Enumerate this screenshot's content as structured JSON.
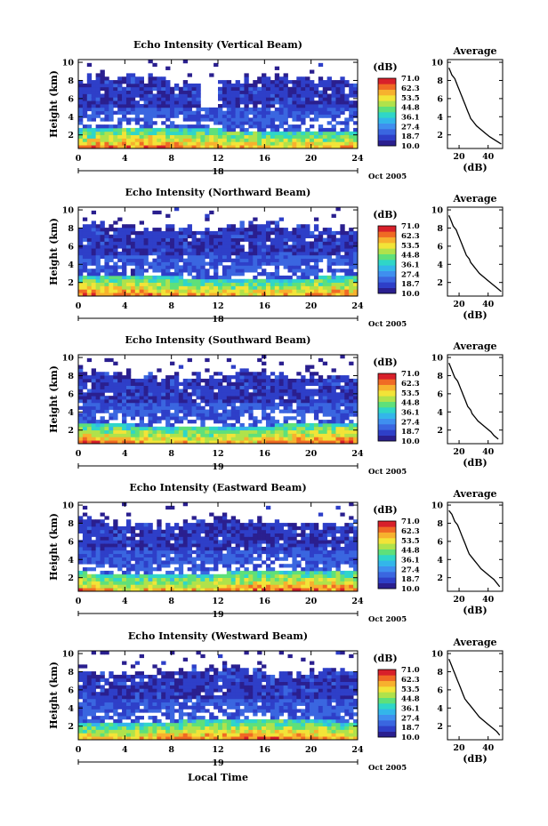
{
  "figure": {
    "xlabel": "Local Time",
    "date_label": "Oct 2005",
    "colorbar_unit": "(dB)",
    "colorbar_ticks": [
      "71.0",
      "62.3",
      "53.5",
      "44.8",
      "36.1",
      "27.4",
      "18.7",
      "10.0"
    ],
    "colormap": [
      "#2a1f8f",
      "#2e3fc8",
      "#3a66e0",
      "#3f8fef",
      "#33b6ea",
      "#2fd6c8",
      "#5ee07a",
      "#b0e24b",
      "#f2e438",
      "#f7b12e",
      "#f06a24",
      "#d8202a"
    ]
  },
  "chart_data": [
    {
      "type": "heatmap",
      "title": "Echo Intensity (Vertical Beam)",
      "ylabel": "Height (km)",
      "xlim": [
        0,
        24
      ],
      "ylim": [
        0.5,
        10.3
      ],
      "x_ticks": [
        0,
        4,
        8,
        12,
        16,
        20,
        24
      ],
      "y_ticks": [
        2,
        4,
        6,
        8,
        10
      ],
      "day_label": "18",
      "clim": [
        10.0,
        71.0
      ],
      "colorbar_ticks": [
        71.0,
        62.3,
        53.5,
        44.8,
        36.1,
        27.4,
        18.7,
        10.0
      ],
      "profile": {
        "title": "Average",
        "xlabel": "(dB)",
        "xlim": [
          12,
          50
        ],
        "x_ticks": [
          20,
          40
        ],
        "ylim": [
          0.5,
          10.3
        ],
        "y_ticks": [
          2,
          4,
          6,
          8,
          10
        ],
        "height": [
          9.4,
          9.0,
          8.6,
          8.2,
          7.8,
          7.4,
          7.0,
          6.6,
          6.2,
          5.8,
          5.4,
          5.0,
          4.6,
          4.2,
          3.8,
          3.4,
          3.0,
          2.6,
          2.2,
          1.8,
          1.4,
          1.0
        ],
        "value": [
          13,
          14,
          15,
          17,
          18,
          19,
          20,
          21,
          22,
          23,
          24,
          25,
          26,
          27,
          28,
          30,
          32,
          35,
          38,
          41,
          45,
          49
        ]
      }
    },
    {
      "type": "heatmap",
      "title": "Echo Intensity (Northward Beam)",
      "ylabel": "Height (km)",
      "xlim": [
        0,
        24
      ],
      "ylim": [
        0.5,
        10.3
      ],
      "x_ticks": [
        0,
        4,
        8,
        12,
        16,
        20,
        24
      ],
      "y_ticks": [
        2,
        4,
        6,
        8,
        10
      ],
      "day_label": "18",
      "clim": [
        10.0,
        71.0
      ],
      "colorbar_ticks": [
        71.0,
        62.3,
        53.5,
        44.8,
        36.1,
        27.4,
        18.7,
        10.0
      ],
      "profile": {
        "title": "Average",
        "xlabel": "(dB)",
        "xlim": [
          12,
          50
        ],
        "x_ticks": [
          20,
          40
        ],
        "ylim": [
          0.5,
          10.3
        ],
        "y_ticks": [
          2,
          4,
          6,
          8,
          10
        ],
        "height": [
          9.4,
          9.0,
          8.6,
          8.2,
          7.8,
          7.4,
          7.0,
          6.6,
          6.2,
          5.8,
          5.4,
          5.0,
          4.6,
          4.2,
          3.8,
          3.4,
          3.0,
          2.6,
          2.2,
          1.8,
          1.4,
          1.0
        ],
        "value": [
          13,
          14,
          15,
          16,
          18,
          19,
          20,
          21,
          22,
          23,
          24,
          25,
          27,
          28,
          30,
          32,
          34,
          37,
          40,
          43,
          46,
          49
        ]
      }
    },
    {
      "type": "heatmap",
      "title": "Echo Intensity (Southward Beam)",
      "ylabel": "Height (km)",
      "xlim": [
        0,
        24
      ],
      "ylim": [
        0.5,
        10.3
      ],
      "x_ticks": [
        0,
        4,
        8,
        12,
        16,
        20,
        24
      ],
      "y_ticks": [
        2,
        4,
        6,
        8,
        10
      ],
      "day_label": "19",
      "clim": [
        10.0,
        71.0
      ],
      "colorbar_ticks": [
        71.0,
        62.3,
        53.5,
        44.8,
        36.1,
        27.4,
        18.7,
        10.0
      ],
      "profile": {
        "title": "Average",
        "xlabel": "(dB)",
        "xlim": [
          12,
          50
        ],
        "x_ticks": [
          20,
          40
        ],
        "ylim": [
          0.5,
          10.3
        ],
        "y_ticks": [
          2,
          4,
          6,
          8,
          10
        ],
        "height": [
          9.4,
          9.0,
          8.6,
          8.2,
          7.8,
          7.4,
          7.0,
          6.6,
          6.2,
          5.8,
          5.4,
          5.0,
          4.6,
          4.2,
          3.8,
          3.4,
          3.0,
          2.6,
          2.2,
          1.8,
          1.4,
          1.0
        ],
        "value": [
          13,
          14,
          15,
          16,
          17,
          19,
          20,
          21,
          22,
          23,
          24,
          25,
          26,
          28,
          29,
          31,
          33,
          36,
          39,
          42,
          44,
          47
        ]
      }
    },
    {
      "type": "heatmap",
      "title": "Echo Intensity (Eastward Beam)",
      "ylabel": "Height (km)",
      "xlim": [
        0,
        24
      ],
      "ylim": [
        0.5,
        10.3
      ],
      "x_ticks": [
        0,
        4,
        8,
        12,
        16,
        20,
        24
      ],
      "y_ticks": [
        2,
        4,
        6,
        8,
        10
      ],
      "day_label": "19",
      "clim": [
        10.0,
        71.0
      ],
      "colorbar_ticks": [
        71.0,
        62.3,
        53.5,
        44.8,
        36.1,
        27.4,
        18.7,
        10.0
      ],
      "profile": {
        "title": "Average",
        "xlabel": "(dB)",
        "xlim": [
          12,
          50
        ],
        "x_ticks": [
          20,
          40
        ],
        "ylim": [
          0.5,
          10.3
        ],
        "y_ticks": [
          2,
          4,
          6,
          8,
          10
        ],
        "height": [
          9.4,
          9.0,
          8.6,
          8.2,
          7.8,
          7.4,
          7.0,
          6.6,
          6.2,
          5.8,
          5.4,
          5.0,
          4.6,
          4.2,
          3.8,
          3.4,
          3.0,
          2.6,
          2.2,
          1.8,
          1.4,
          1.0
        ],
        "value": [
          13,
          15,
          16,
          17,
          19,
          20,
          21,
          22,
          23,
          24,
          25,
          26,
          27,
          29,
          31,
          33,
          35,
          38,
          41,
          44,
          46,
          48
        ]
      }
    },
    {
      "type": "heatmap",
      "title": "Echo Intensity (Westward Beam)",
      "ylabel": "Height (km)",
      "xlim": [
        0,
        24
      ],
      "ylim": [
        0.5,
        10.3
      ],
      "x_ticks": [
        0,
        4,
        8,
        12,
        16,
        20,
        24
      ],
      "y_ticks": [
        2,
        4,
        6,
        8,
        10
      ],
      "day_label": "19",
      "clim": [
        10.0,
        71.0
      ],
      "colorbar_ticks": [
        71.0,
        62.3,
        53.5,
        44.8,
        36.1,
        27.4,
        18.7,
        10.0
      ],
      "profile": {
        "title": "Average",
        "xlabel": "(dB)",
        "xlim": [
          12,
          50
        ],
        "x_ticks": [
          20,
          40
        ],
        "ylim": [
          0.5,
          10.3
        ],
        "y_ticks": [
          2,
          4,
          6,
          8,
          10
        ],
        "height": [
          9.4,
          9.0,
          8.6,
          8.2,
          7.8,
          7.4,
          7.0,
          6.6,
          6.2,
          5.8,
          5.4,
          5.0,
          4.6,
          4.2,
          3.8,
          3.4,
          3.0,
          2.6,
          2.2,
          1.8,
          1.4,
          1.0
        ],
        "value": [
          13,
          14,
          15,
          16,
          17,
          18,
          19,
          20,
          21,
          22,
          23,
          24,
          26,
          28,
          30,
          32,
          34,
          37,
          40,
          43,
          46,
          48
        ]
      }
    }
  ]
}
